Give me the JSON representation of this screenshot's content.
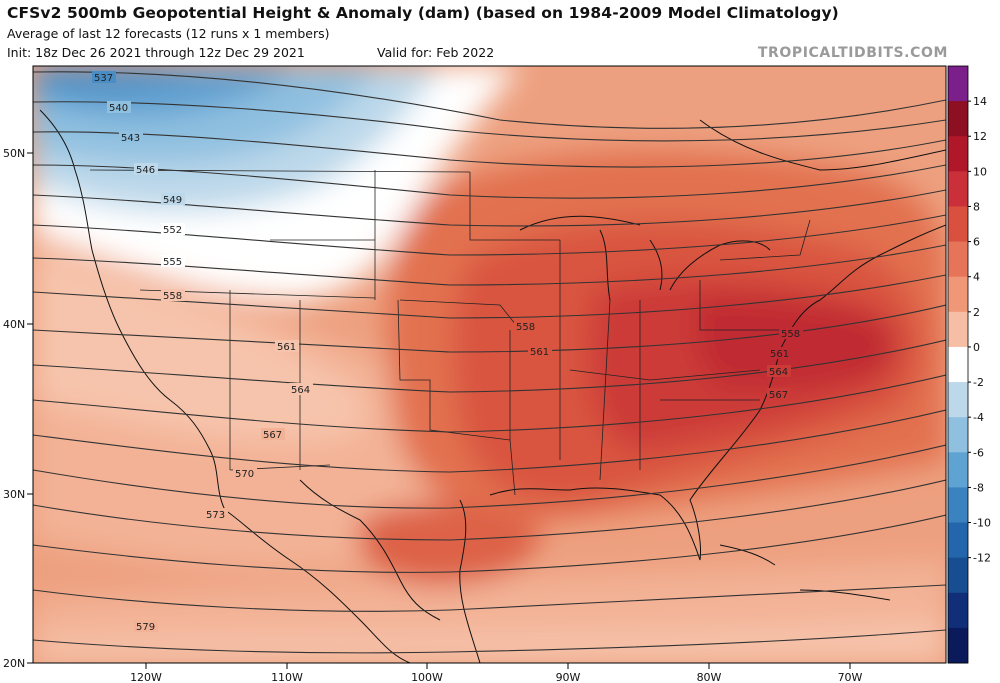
{
  "header": {
    "title": "CFSv2 500mb Geopotential Height & Anomaly (dam) (based on 1984-2009 Model Climatology)",
    "subtitle": "Average of last 12 forecasts (12 runs x 1 members)",
    "init": "Init: 18z Dec 26 2021 through 12z Dec 29 2021",
    "valid": "Valid for: Feb 2022",
    "brand": "TROPICALTIDBITS.COM"
  },
  "map": {
    "lat_labels": [
      "50N",
      "40N",
      "30N",
      "20N"
    ],
    "lon_labels": [
      "120W",
      "110W",
      "100W",
      "90W",
      "80W",
      "70W"
    ],
    "height_contour_labels": [
      "537",
      "540",
      "543",
      "546",
      "549",
      "552",
      "555",
      "558",
      "561",
      "564",
      "567",
      "570",
      "573",
      "579",
      "558",
      "561",
      "558",
      "561",
      "564",
      "567"
    ]
  },
  "colorbar": {
    "labels": [
      "14",
      "12",
      "10",
      "8",
      "6",
      "4",
      "2",
      "0",
      "-2",
      "-4",
      "-6",
      "-8",
      "-10",
      "-12"
    ],
    "colors": [
      "#7b1f8a",
      "#8c0f22",
      "#b0182a",
      "#c9303a",
      "#d9503f",
      "#e57459",
      "#ef9777",
      "#f6bea4",
      "#ffffff",
      "#bcd8ea",
      "#8fc0e0",
      "#5fa3d2",
      "#3b82c0",
      "#2366ab",
      "#174e92",
      "#102f78",
      "#0b1a5a"
    ]
  },
  "legend_colors": {
    "ocean_base": "#eda07f",
    "warm_strong": "#c93038",
    "warm_mid": "#db5e48",
    "cool": "#8fc0e0",
    "cool_strong": "#4d8fc6"
  }
}
